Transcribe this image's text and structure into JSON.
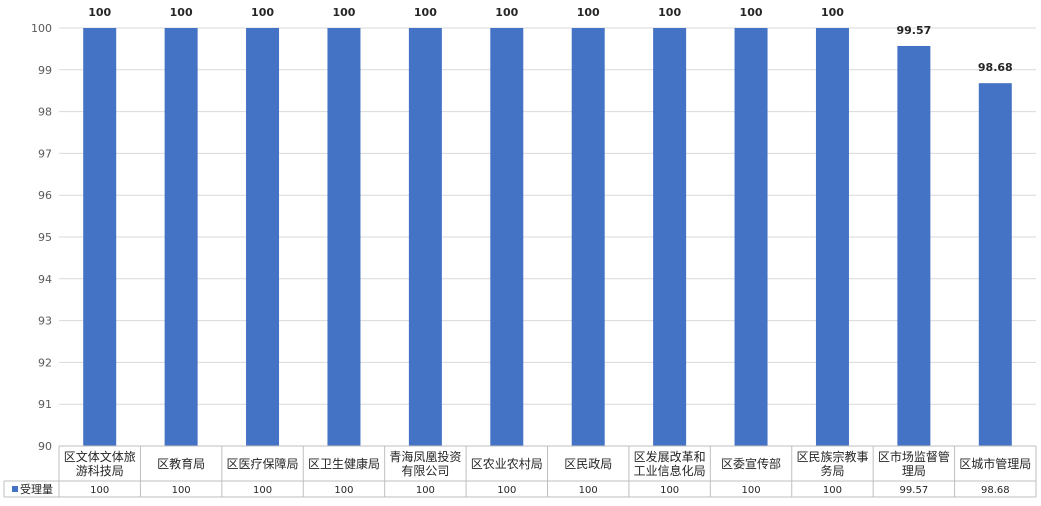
{
  "chart_data": {
    "type": "bar",
    "categories": [
      "区文体文体旅游科技局",
      "区教育局",
      "区医疗保障局",
      "区卫生健康局",
      "青海凤凰投资有限公司",
      "区农业农村局",
      "区民政局",
      "区发展改革和工业信息化局",
      "区委宣传部",
      "区民族宗教事务局",
      "区市场监督管理局",
      "区城市管理局"
    ],
    "category_lines": [
      [
        "区文体文体旅",
        "游科技局"
      ],
      [
        "区教育局"
      ],
      [
        "区医疗保障局"
      ],
      [
        "区卫生健康局"
      ],
      [
        "青海凤凰投资",
        "有限公司"
      ],
      [
        "区农业农村局"
      ],
      [
        "区民政局"
      ],
      [
        "区发展改革和",
        "工业信息化局"
      ],
      [
        "区委宣传部"
      ],
      [
        "区民族宗教事",
        "务局"
      ],
      [
        "区市场监督管",
        "理局"
      ],
      [
        "区城市管理局"
      ]
    ],
    "series": [
      {
        "name": "受理量",
        "color": "#4472C4",
        "values": [
          100,
          100,
          100,
          100,
          100,
          100,
          100,
          100,
          100,
          100,
          99.57,
          98.68
        ],
        "labels": [
          "100",
          "100",
          "100",
          "100",
          "100",
          "100",
          "100",
          "100",
          "100",
          "100",
          "99.57",
          "98.68"
        ]
      }
    ],
    "ylim": [
      90,
      100
    ],
    "yticks": [
      90,
      91,
      92,
      93,
      94,
      95,
      96,
      97,
      98,
      99,
      100
    ],
    "grid": true,
    "data_table": true,
    "title": "",
    "xlabel": "",
    "ylabel": ""
  }
}
